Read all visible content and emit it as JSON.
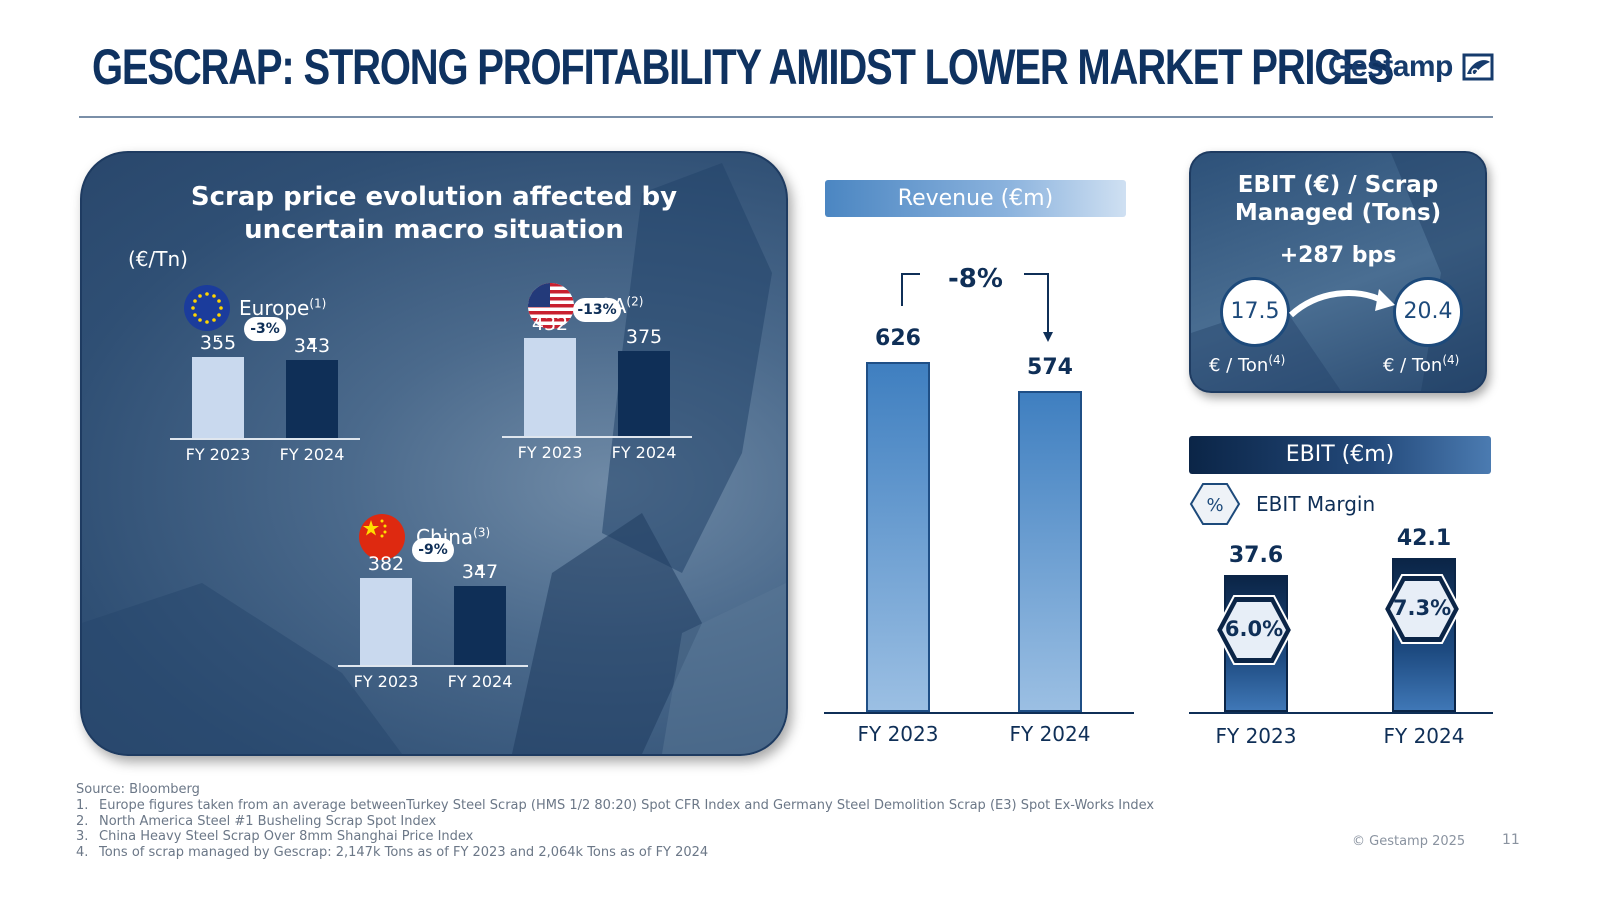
{
  "slide": {
    "title": "GESCRAP: STRONG PROFITABILITY AMIDST LOWER MARKET PRICES",
    "logo_text": "Gestamp",
    "page_number": "11",
    "copyright": "© Gestamp 2025"
  },
  "scrap_panel": {
    "title_line1": "Scrap price evolution affected by",
    "title_line2": "uncertain macro situation",
    "unit": "(€/Tn)"
  },
  "chart_data": [
    {
      "type": "bar",
      "id": "europe",
      "title": "Europe",
      "note": "(1)",
      "categories": [
        "FY 2023",
        "FY 2024"
      ],
      "values": [
        355,
        343
      ],
      "change_label": "-3%",
      "ylabel": "€/Tn"
    },
    {
      "type": "bar",
      "id": "usa",
      "title": "USA",
      "note": "(2)",
      "categories": [
        "FY 2023",
        "FY 2024"
      ],
      "values": [
        432,
        375
      ],
      "change_label": "-13%",
      "ylabel": "€/Tn"
    },
    {
      "type": "bar",
      "id": "china",
      "title": "China",
      "note": "(3)",
      "categories": [
        "FY 2023",
        "FY 2024"
      ],
      "values": [
        382,
        347
      ],
      "change_label": "-9%",
      "ylabel": "€/Tn"
    },
    {
      "type": "bar",
      "id": "revenue",
      "title": "Revenue (€m)",
      "categories": [
        "FY 2023",
        "FY 2024"
      ],
      "values": [
        626,
        574
      ],
      "change_label": "-8%"
    },
    {
      "type": "bar",
      "id": "ebit",
      "title": "EBIT (€m)",
      "categories": [
        "FY 2023",
        "FY 2024"
      ],
      "values": [
        37.6,
        42.1
      ],
      "margins": [
        "6.0%",
        "7.3%"
      ],
      "legend": "EBIT Margin",
      "legend_symbol": "%"
    }
  ],
  "ebit_scrap": {
    "title_line1": "EBIT (€) / Scrap",
    "title_line2": "Managed (Tons)",
    "change": "+287 bps",
    "from_value": "17.5",
    "to_value": "20.4",
    "unit": "€ / Ton",
    "unit_note": "(4)"
  },
  "footnotes": {
    "source": "Source: Bloomberg",
    "items": [
      {
        "num": "1.",
        "text": "Europe figures taken from an average betweenTurkey Steel Scrap (HMS 1/2 80:20) Spot CFR Index and Germany Steel Demolition Scrap (E3) Spot Ex-Works Index"
      },
      {
        "num": "2.",
        "text": "North America Steel #1 Busheling Scrap Spot Index"
      },
      {
        "num": "3.",
        "text": "China Heavy Steel Scrap Over 8mm Shanghai Price Index"
      },
      {
        "num": "4.",
        "text": "Tons of scrap managed by Gescrap: 2,147k Tons as of FY 2023 and 2,064k Tons as of FY 2024"
      }
    ]
  }
}
